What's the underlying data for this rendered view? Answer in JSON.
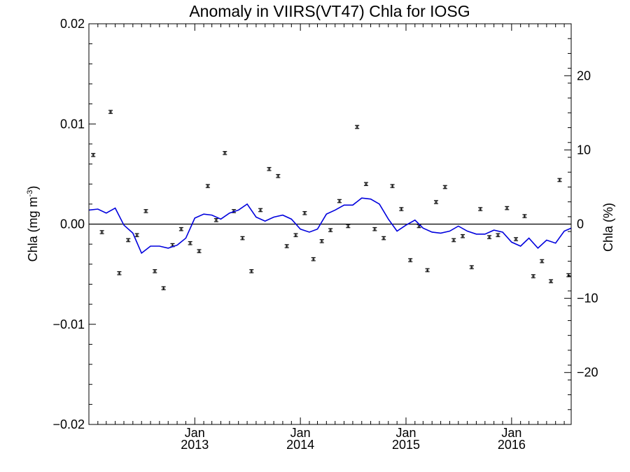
{
  "chart_data": {
    "type": "line",
    "title": "Anomaly in VIIRS(VT47) Chla for IOSG",
    "ylabel_left": "Chla (mg m",
    "ylabel_left_sup": "-3",
    "ylabel_left_close": ")",
    "ylabel_right": "Chla (%)",
    "ylim_left": [
      -0.02,
      0.02
    ],
    "ylim_right": [
      -27,
      27
    ],
    "left_ticks": [
      {
        "value": 0.02,
        "label": "0.02"
      },
      {
        "value": 0.01,
        "label": "0.01"
      },
      {
        "value": 0.0,
        "label": "0.00"
      },
      {
        "value": -0.01,
        "label": "−0.01"
      },
      {
        "value": -0.02,
        "label": "−0.02"
      }
    ],
    "right_ticks": [
      {
        "value": 20,
        "label": "20"
      },
      {
        "value": 10,
        "label": "10"
      },
      {
        "value": 0,
        "label": "0"
      },
      {
        "value": -10,
        "label": "−10"
      },
      {
        "value": -20,
        "label": "−20"
      }
    ],
    "x_range": [
      "2012-01-01",
      "2016-07-25"
    ],
    "x_ticks": [
      {
        "date": "2013-01-01",
        "month": "Jan",
        "year": "2013"
      },
      {
        "date": "2014-01-01",
        "month": "Jan",
        "year": "2014"
      },
      {
        "date": "2015-01-01",
        "month": "Jan",
        "year": "2015"
      },
      {
        "date": "2016-01-01",
        "month": "Jan",
        "year": "2016"
      }
    ],
    "grid": false,
    "zero_line": true,
    "series": [
      {
        "kind": "points_with_errorbars",
        "axis": "left",
        "color": "#000000",
        "points": [
          {
            "x": "2012-01-16",
            "y": 0.0069
          },
          {
            "x": "2012-02-15",
            "y": -0.0008
          },
          {
            "x": "2012-03-16",
            "y": 0.0112
          },
          {
            "x": "2012-04-15",
            "y": -0.0049
          },
          {
            "x": "2012-05-16",
            "y": -0.0016
          },
          {
            "x": "2012-06-15",
            "y": -0.0011
          },
          {
            "x": "2012-07-16",
            "y": 0.0013
          },
          {
            "x": "2012-08-16",
            "y": -0.0047
          },
          {
            "x": "2012-09-15",
            "y": -0.0064
          },
          {
            "x": "2012-10-16",
            "y": -0.0021
          },
          {
            "x": "2012-11-15",
            "y": -0.0005
          },
          {
            "x": "2012-12-16",
            "y": -0.0019
          },
          {
            "x": "2013-01-16",
            "y": -0.0027
          },
          {
            "x": "2013-02-15",
            "y": 0.0038
          },
          {
            "x": "2013-03-16",
            "y": 0.0004
          },
          {
            "x": "2013-04-15",
            "y": 0.0071
          },
          {
            "x": "2013-05-16",
            "y": 0.0013
          },
          {
            "x": "2013-06-15",
            "y": -0.0014
          },
          {
            "x": "2013-07-16",
            "y": -0.0047
          },
          {
            "x": "2013-08-16",
            "y": 0.0014
          },
          {
            "x": "2013-09-15",
            "y": 0.0055
          },
          {
            "x": "2013-10-16",
            "y": 0.0048
          },
          {
            "x": "2013-11-15",
            "y": -0.0022
          },
          {
            "x": "2013-12-16",
            "y": -0.0011
          },
          {
            "x": "2014-01-16",
            "y": 0.0011
          },
          {
            "x": "2014-02-15",
            "y": -0.0035
          },
          {
            "x": "2014-03-16",
            "y": -0.0017
          },
          {
            "x": "2014-04-15",
            "y": -0.0006
          },
          {
            "x": "2014-05-16",
            "y": 0.0023
          },
          {
            "x": "2014-06-15",
            "y": -0.0002
          },
          {
            "x": "2014-07-16",
            "y": 0.0097
          },
          {
            "x": "2014-08-16",
            "y": 0.004
          },
          {
            "x": "2014-09-15",
            "y": -0.0005
          },
          {
            "x": "2014-10-16",
            "y": -0.0014
          },
          {
            "x": "2014-11-15",
            "y": 0.0038
          },
          {
            "x": "2014-12-16",
            "y": 0.0015
          },
          {
            "x": "2015-01-16",
            "y": -0.0036
          },
          {
            "x": "2015-02-15",
            "y": -0.0002
          },
          {
            "x": "2015-03-16",
            "y": -0.0046
          },
          {
            "x": "2015-04-15",
            "y": 0.0022
          },
          {
            "x": "2015-05-16",
            "y": 0.0037
          },
          {
            "x": "2015-06-15",
            "y": -0.0016
          },
          {
            "x": "2015-07-16",
            "y": -0.0012
          },
          {
            "x": "2015-08-16",
            "y": -0.0043
          },
          {
            "x": "2015-09-15",
            "y": 0.0015
          },
          {
            "x": "2015-10-16",
            "y": -0.0013
          },
          {
            "x": "2015-11-15",
            "y": -0.0011
          },
          {
            "x": "2015-12-16",
            "y": 0.0016
          },
          {
            "x": "2016-01-16",
            "y": -0.0015
          },
          {
            "x": "2016-02-15",
            "y": 0.0008
          },
          {
            "x": "2016-03-16",
            "y": -0.0052
          },
          {
            "x": "2016-04-15",
            "y": -0.0037
          },
          {
            "x": "2016-05-16",
            "y": -0.0057
          },
          {
            "x": "2016-06-15",
            "y": 0.0044
          },
          {
            "x": "2016-07-16",
            "y": -0.0051
          }
        ]
      },
      {
        "kind": "line",
        "axis": "left",
        "color": "#0000dd",
        "points": [
          {
            "x": "2012-01-01",
            "y": 0.0014
          },
          {
            "x": "2012-02-01",
            "y": 0.0015
          },
          {
            "x": "2012-03-01",
            "y": 0.0011
          },
          {
            "x": "2012-04-01",
            "y": 0.0016
          },
          {
            "x": "2012-05-01",
            "y": -0.0001
          },
          {
            "x": "2012-06-01",
            "y": -0.0009
          },
          {
            "x": "2012-07-01",
            "y": -0.0029
          },
          {
            "x": "2012-08-01",
            "y": -0.0022
          },
          {
            "x": "2012-09-01",
            "y": -0.0022
          },
          {
            "x": "2012-10-01",
            "y": -0.0024
          },
          {
            "x": "2012-11-01",
            "y": -0.0021
          },
          {
            "x": "2012-12-01",
            "y": -0.0014
          },
          {
            "x": "2013-01-01",
            "y": 0.0006
          },
          {
            "x": "2013-02-01",
            "y": 0.001
          },
          {
            "x": "2013-03-01",
            "y": 0.0009
          },
          {
            "x": "2013-04-01",
            "y": 0.0005
          },
          {
            "x": "2013-05-01",
            "y": 0.0011
          },
          {
            "x": "2013-06-01",
            "y": 0.0014
          },
          {
            "x": "2013-07-01",
            "y": 0.002
          },
          {
            "x": "2013-08-01",
            "y": 0.0007
          },
          {
            "x": "2013-09-01",
            "y": 0.0003
          },
          {
            "x": "2013-10-01",
            "y": 0.0007
          },
          {
            "x": "2013-11-01",
            "y": 0.0009
          },
          {
            "x": "2013-12-01",
            "y": 0.0005
          },
          {
            "x": "2014-01-01",
            "y": -0.0005
          },
          {
            "x": "2014-02-01",
            "y": -0.0008
          },
          {
            "x": "2014-03-01",
            "y": -0.0005
          },
          {
            "x": "2014-04-01",
            "y": 0.001
          },
          {
            "x": "2014-05-01",
            "y": 0.0014
          },
          {
            "x": "2014-06-01",
            "y": 0.0019
          },
          {
            "x": "2014-07-01",
            "y": 0.0019
          },
          {
            "x": "2014-08-01",
            "y": 0.0026
          },
          {
            "x": "2014-09-01",
            "y": 0.0025
          },
          {
            "x": "2014-10-01",
            "y": 0.002
          },
          {
            "x": "2014-11-01",
            "y": 0.0005
          },
          {
            "x": "2014-12-01",
            "y": -0.0007
          },
          {
            "x": "2015-01-01",
            "y": -0.0001
          },
          {
            "x": "2015-02-01",
            "y": 0.0004
          },
          {
            "x": "2015-03-01",
            "y": -0.0004
          },
          {
            "x": "2015-04-01",
            "y": -0.0008
          },
          {
            "x": "2015-05-01",
            "y": -0.0009
          },
          {
            "x": "2015-06-01",
            "y": -0.0007
          },
          {
            "x": "2015-07-01",
            "y": -0.0002
          },
          {
            "x": "2015-08-01",
            "y": -0.0007
          },
          {
            "x": "2015-09-01",
            "y": -0.001
          },
          {
            "x": "2015-10-01",
            "y": -0.001
          },
          {
            "x": "2015-11-01",
            "y": -0.0006
          },
          {
            "x": "2015-12-01",
            "y": -0.0008
          },
          {
            "x": "2016-01-01",
            "y": -0.0018
          },
          {
            "x": "2016-02-01",
            "y": -0.0022
          },
          {
            "x": "2016-03-01",
            "y": -0.0014
          },
          {
            "x": "2016-04-01",
            "y": -0.0024
          },
          {
            "x": "2016-05-01",
            "y": -0.0016
          },
          {
            "x": "2016-06-01",
            "y": -0.0019
          },
          {
            "x": "2016-07-01",
            "y": -0.0007
          },
          {
            "x": "2016-07-25",
            "y": -0.0004
          }
        ]
      }
    ]
  }
}
